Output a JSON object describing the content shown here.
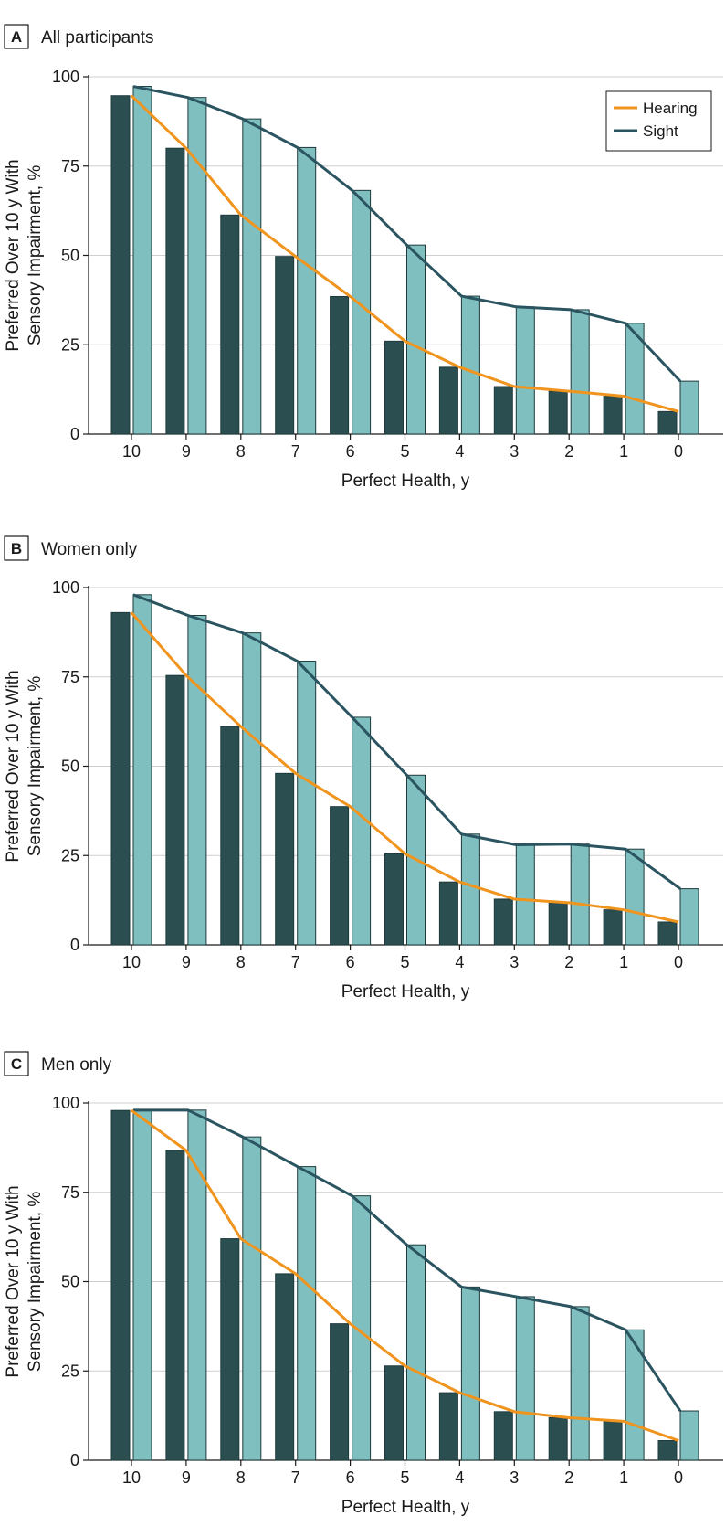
{
  "colors": {
    "hearing_bar": "#2b4f51",
    "sight_bar": "#7fbfbf",
    "hearing_line": "#f0941e",
    "sight_line": "#2b5461",
    "grid": "#cfcfcf"
  },
  "legend": {
    "hearing": "Hearing",
    "sight": "Sight"
  },
  "chart_data": [
    {
      "type": "bar",
      "panel_letter": "A",
      "title": "All participants",
      "xlabel": "Perfect Health, y",
      "ylabel_line1": "Preferred Over 10 y With",
      "ylabel_line2": "Sensory Impairment, %",
      "ylim": [
        0,
        100
      ],
      "yticks": [
        "0",
        "25",
        "50",
        "75",
        "100"
      ],
      "categories": [
        "10",
        "9",
        "8",
        "7",
        "6",
        "5",
        "4",
        "3",
        "2",
        "1",
        "0"
      ],
      "series": [
        {
          "name": "Hearing",
          "values": [
            94.7,
            80,
            61.3,
            49.7,
            38.5,
            26,
            18.7,
            13.3,
            12,
            10.6,
            6.3
          ]
        },
        {
          "name": "Sight",
          "values": [
            97.3,
            94.2,
            88.2,
            80.2,
            68.2,
            52.9,
            38.6,
            35.6,
            34.8,
            31,
            14.8
          ]
        }
      ]
    },
    {
      "type": "bar",
      "panel_letter": "B",
      "title": "Women only",
      "xlabel": "Perfect Health, y",
      "ylabel_line1": "Preferred Over 10 y With",
      "ylabel_line2": "Sensory Impairment, %",
      "ylim": [
        0,
        100
      ],
      "yticks": [
        "0",
        "25",
        "50",
        "75",
        "100"
      ],
      "categories": [
        "10",
        "9",
        "8",
        "7",
        "6",
        "5",
        "4",
        "3",
        "2",
        "1",
        "0"
      ],
      "series": [
        {
          "name": "Hearing",
          "values": [
            93,
            75.4,
            61.1,
            48,
            38.7,
            25.5,
            17.6,
            12.8,
            11.8,
            9.8,
            6.4
          ]
        },
        {
          "name": "Sight",
          "values": [
            98,
            92.2,
            87.3,
            79.4,
            63.7,
            47.5,
            31,
            28,
            28.2,
            26.8,
            15.7
          ]
        }
      ]
    },
    {
      "type": "bar",
      "panel_letter": "C",
      "title": "Men only",
      "xlabel": "Perfect Health, y",
      "ylabel_line1": "Preferred Over 10 y With",
      "ylabel_line2": "Sensory Impairment, %",
      "ylim": [
        0,
        100
      ],
      "yticks": [
        "0",
        "25",
        "50",
        "75",
        "100"
      ],
      "categories": [
        "10",
        "9",
        "8",
        "7",
        "6",
        "5",
        "4",
        "3",
        "2",
        "1",
        "0"
      ],
      "series": [
        {
          "name": "Hearing",
          "values": [
            97.9,
            86.7,
            62,
            52.2,
            38.2,
            26.4,
            18.9,
            13.6,
            11.9,
            10.9,
            5.5
          ]
        },
        {
          "name": "Sight",
          "values": [
            98,
            98,
            90.5,
            82.2,
            74,
            60.3,
            48.5,
            45.8,
            43,
            36.5,
            13.8
          ]
        }
      ]
    }
  ]
}
